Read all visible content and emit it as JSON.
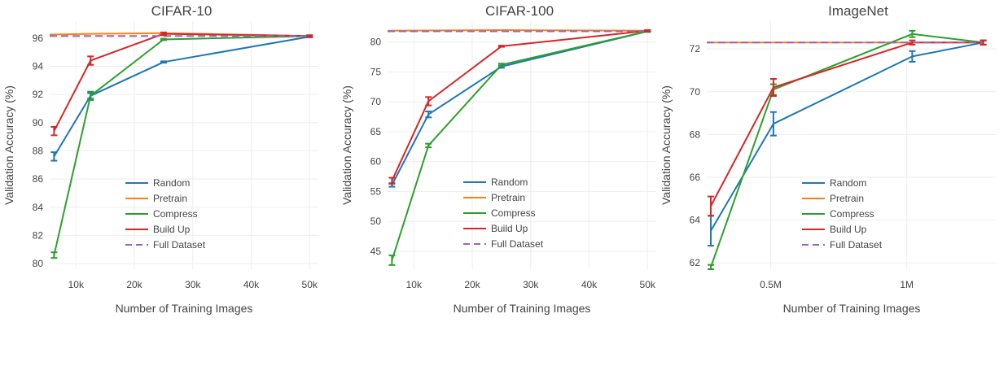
{
  "chart_data": [
    {
      "type": "line",
      "title": "CIFAR-10",
      "xlabel": "Number of Training Images",
      "ylabel": "Validation Accuracy (%)",
      "xlim": [
        5500,
        51500
      ],
      "ylim": [
        79.6,
        97.2
      ],
      "xticks": [
        10000,
        20000,
        30000,
        40000,
        50000
      ],
      "xtick_labels": [
        "10k",
        "20k",
        "30k",
        "40k",
        "50k"
      ],
      "yticks": [
        80,
        82,
        84,
        86,
        88,
        90,
        92,
        94,
        96
      ],
      "ytick_labels": [
        "80",
        "82",
        "84",
        "86",
        "88",
        "90",
        "92",
        "94",
        "96"
      ],
      "grid": true,
      "legend_position": "lower-center",
      "series": [
        {
          "name": "Random",
          "color": "#1f77b4",
          "dash": "solid",
          "x": [
            6250,
            12500,
            25000,
            50000
          ],
          "y": [
            87.6,
            91.9,
            94.3,
            96.1
          ],
          "err": [
            0.3,
            0.2,
            0.05,
            0.05
          ]
        },
        {
          "name": "Pretrain",
          "color": "#ff7f0e",
          "dash": "solid",
          "x": [
            5500,
            12500,
            25000,
            50000
          ],
          "y": [
            96.25,
            96.3,
            96.35,
            96.15
          ],
          "err": [
            0,
            0,
            0,
            0
          ]
        },
        {
          "name": "Compress",
          "color": "#2ca02c",
          "dash": "solid",
          "x": [
            6250,
            12500,
            25000,
            50000
          ],
          "y": [
            80.6,
            91.9,
            95.9,
            96.15
          ],
          "err": [
            0.2,
            0.3,
            0.05,
            0.05
          ]
        },
        {
          "name": "Build Up",
          "color": "#d62728",
          "dash": "solid",
          "x": [
            6250,
            12500,
            25000,
            50000
          ],
          "y": [
            89.4,
            94.4,
            96.3,
            96.15
          ],
          "err": [
            0.3,
            0.3,
            0.1,
            0.05
          ]
        },
        {
          "name": "Full Dataset",
          "color": "#9467bd",
          "dash": "dash",
          "x": [
            5500,
            50000
          ],
          "y": [
            96.15,
            96.15
          ],
          "err": [
            0,
            0
          ]
        }
      ]
    },
    {
      "type": "line",
      "title": "CIFAR-100",
      "xlabel": "Number of Training Images",
      "ylabel": "Validation Accuracy (%)",
      "xlim": [
        5500,
        51500
      ],
      "ylim": [
        42,
        83.5
      ],
      "xticks": [
        10000,
        20000,
        30000,
        40000,
        50000
      ],
      "xtick_labels": [
        "10k",
        "20k",
        "30k",
        "40k",
        "50k"
      ],
      "yticks": [
        45,
        50,
        55,
        60,
        65,
        70,
        75,
        80
      ],
      "ytick_labels": [
        "45",
        "50",
        "55",
        "60",
        "65",
        "70",
        "75",
        "80"
      ],
      "grid": true,
      "legend_position": "lower-center",
      "series": [
        {
          "name": "Random",
          "color": "#1f77b4",
          "dash": "solid",
          "x": [
            6250,
            12500,
            25000,
            50000
          ],
          "y": [
            56.1,
            67.9,
            75.9,
            81.8
          ],
          "err": [
            0.3,
            0.5,
            0.2,
            0.1
          ]
        },
        {
          "name": "Pretrain",
          "color": "#ff7f0e",
          "dash": "solid",
          "x": [
            5500,
            25000,
            50000
          ],
          "y": [
            81.9,
            82.0,
            81.9
          ],
          "err": [
            0,
            0,
            0
          ]
        },
        {
          "name": "Compress",
          "color": "#2ca02c",
          "dash": "solid",
          "x": [
            6250,
            12500,
            25000,
            50000
          ],
          "y": [
            43.5,
            62.7,
            76.2,
            81.8
          ],
          "err": [
            0.8,
            0.3,
            0.2,
            0.1
          ]
        },
        {
          "name": "Build Up",
          "color": "#d62728",
          "dash": "solid",
          "x": [
            6250,
            12500,
            25000,
            50000
          ],
          "y": [
            56.8,
            70.1,
            79.3,
            81.9
          ],
          "err": [
            0.5,
            0.7,
            0.1,
            0.1
          ]
        },
        {
          "name": "Full Dataset",
          "color": "#9467bd",
          "dash": "dash",
          "x": [
            5500,
            50000
          ],
          "y": [
            81.8,
            81.8
          ],
          "err": [
            0,
            0
          ]
        }
      ]
    },
    {
      "type": "line",
      "title": "ImageNet",
      "xlabel": "Number of Training Images",
      "ylabel": "Validation Accuracy (%)",
      "xlim": [
        265000,
        1330000
      ],
      "ylim": [
        61.7,
        73.3
      ],
      "xticks": [
        500000,
        1000000
      ],
      "xtick_labels": [
        "0.5M",
        "1M"
      ],
      "yticks": [
        62,
        64,
        66,
        68,
        70,
        72
      ],
      "ytick_labels": [
        "62",
        "64",
        "66",
        "68",
        "70",
        "72"
      ],
      "grid": true,
      "legend_position": "lower-center",
      "series": [
        {
          "name": "Random",
          "color": "#1f77b4",
          "dash": "solid",
          "x": [
            280000,
            510000,
            1020000,
            1281000
          ],
          "y": [
            63.5,
            68.5,
            71.65,
            72.3
          ],
          "err": [
            0.7,
            0.55,
            0.25,
            0.1
          ]
        },
        {
          "name": "Pretrain",
          "color": "#ff7f0e",
          "dash": "solid",
          "x": [
            265000,
            1281000
          ],
          "y": [
            72.3,
            72.3
          ],
          "err": [
            0,
            0
          ]
        },
        {
          "name": "Compress",
          "color": "#2ca02c",
          "dash": "solid",
          "x": [
            280000,
            510000,
            1020000,
            1281000
          ],
          "y": [
            61.8,
            70.1,
            72.7,
            72.3
          ],
          "err": [
            0.1,
            0.25,
            0.15,
            0.1
          ]
        },
        {
          "name": "Build Up",
          "color": "#d62728",
          "dash": "solid",
          "x": [
            280000,
            510000,
            1020000,
            1281000
          ],
          "y": [
            64.65,
            70.2,
            72.3,
            72.3
          ],
          "err": [
            0.45,
            0.4,
            0.1,
            0.1
          ]
        },
        {
          "name": "Full Dataset",
          "color": "#9467bd",
          "dash": "dash",
          "x": [
            265000,
            1281000
          ],
          "y": [
            72.3,
            72.3
          ],
          "err": [
            0,
            0
          ]
        }
      ]
    }
  ]
}
